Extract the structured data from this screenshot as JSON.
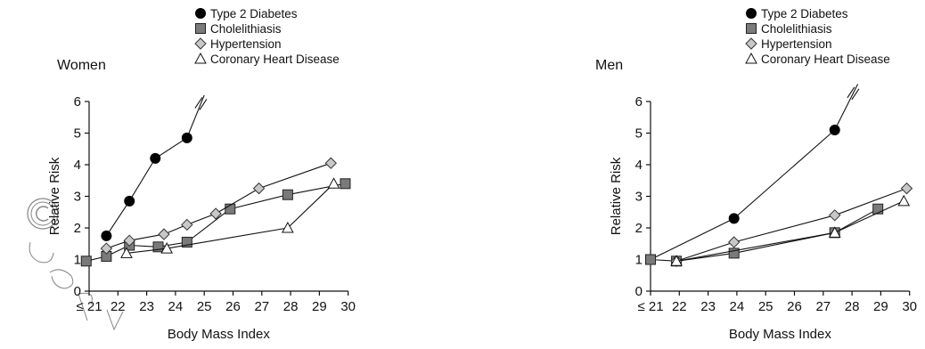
{
  "chart_data": [
    {
      "type": "line",
      "title": "Women",
      "xlabel": "Body Mass Index",
      "ylabel": "Relative Risk",
      "xlim": [
        21,
        30
      ],
      "ylim": [
        0,
        6
      ],
      "xticks": [
        21,
        22,
        23,
        24,
        25,
        26,
        27,
        28,
        29,
        30
      ],
      "xtick_labels": [
        "≤ 21",
        "22",
        "23",
        "24",
        "25",
        "26",
        "27",
        "28",
        "29",
        "30"
      ],
      "yticks": [
        0,
        1,
        2,
        3,
        4,
        5,
        6
      ],
      "legend_position": "top",
      "series": [
        {
          "name": "Type 2 Diabetes",
          "marker": "circle",
          "x": [
            21.6,
            22.4,
            23.3,
            24.4
          ],
          "y": [
            1.75,
            2.85,
            4.2,
            4.85
          ],
          "break_segment": {
            "x": [
              24.4,
              25.0
            ],
            "y": [
              4.85,
              6.2
            ]
          }
        },
        {
          "name": "Cholelithiasis",
          "marker": "square",
          "x": [
            20.9,
            21.6,
            22.4,
            23.4,
            24.4,
            25.9,
            27.9,
            29.9
          ],
          "y": [
            0.95,
            1.1,
            1.45,
            1.4,
            1.55,
            2.6,
            3.05,
            3.4
          ]
        },
        {
          "name": "Hypertension",
          "marker": "diamond",
          "x": [
            21.6,
            22.4,
            23.6,
            24.4,
            25.4,
            26.9,
            29.4
          ],
          "y": [
            1.35,
            1.6,
            1.8,
            2.1,
            2.45,
            3.25,
            4.05
          ]
        },
        {
          "name": "Coronary Heart Disease",
          "marker": "triangle",
          "x": [
            22.3,
            23.7,
            27.9,
            29.5
          ],
          "y": [
            1.2,
            1.35,
            2.0,
            3.4
          ]
        }
      ]
    },
    {
      "type": "line",
      "title": "Men",
      "xlabel": "Body Mass Index",
      "ylabel": "Relative Risk",
      "xlim": [
        21,
        30
      ],
      "ylim": [
        0,
        6
      ],
      "xticks": [
        21,
        22,
        23,
        24,
        25,
        26,
        27,
        28,
        29,
        30
      ],
      "xtick_labels": [
        "≤ 21",
        "22",
        "23",
        "24",
        "25",
        "26",
        "27",
        "28",
        "29",
        "30"
      ],
      "yticks": [
        0,
        1,
        2,
        3,
        4,
        5,
        6
      ],
      "legend_position": "top",
      "series": [
        {
          "name": "Type 2 Diabetes",
          "marker": "circle",
          "x": [
            21.0,
            23.9,
            27.4
          ],
          "y": [
            1.0,
            2.3,
            5.1
          ],
          "break_segment": {
            "x": [
              27.4,
              28.2
            ],
            "y": [
              5.1,
              6.55
            ]
          }
        },
        {
          "name": "Cholelithiasis",
          "marker": "square",
          "x": [
            21.0,
            21.9,
            23.9,
            27.4,
            28.9
          ],
          "y": [
            1.0,
            0.95,
            1.2,
            1.85,
            2.6
          ]
        },
        {
          "name": "Hypertension",
          "marker": "diamond",
          "x": [
            21.9,
            23.9,
            27.4,
            29.9
          ],
          "y": [
            0.95,
            1.55,
            2.4,
            3.25
          ]
        },
        {
          "name": "Coronary Heart Disease",
          "marker": "triangle",
          "x": [
            21.9,
            27.4,
            29.8
          ],
          "y": [
            0.95,
            1.85,
            2.85
          ]
        }
      ]
    }
  ]
}
